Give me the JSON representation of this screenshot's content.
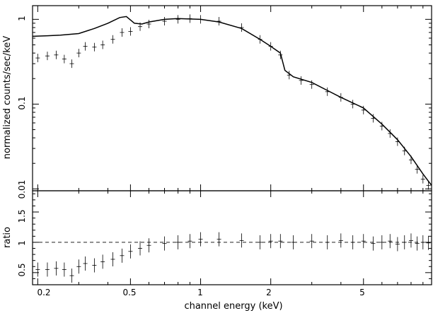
{
  "chart_data": [
    {
      "type": "scatter",
      "panel": "top",
      "xlabel": "",
      "ylabel": "normalized counts/sec/keV",
      "xscale": "log",
      "yscale": "log",
      "xlim": [
        0.19,
        9.8
      ],
      "ylim": [
        0.0095,
        1.45
      ],
      "y_ticks": [
        0.01,
        0.1,
        1
      ],
      "y_tick_labels": [
        "0.01",
        "0.1",
        "1"
      ],
      "series": [
        {
          "type": "data_with_error_bars",
          "x": [
            0.2,
            0.22,
            0.24,
            0.26,
            0.28,
            0.3,
            0.32,
            0.35,
            0.38,
            0.42,
            0.46,
            0.5,
            0.55,
            0.6,
            0.7,
            0.8,
            0.9,
            1.0,
            1.2,
            1.5,
            1.8,
            2.0,
            2.2,
            2.4,
            2.7,
            3.0,
            3.5,
            4.0,
            4.5,
            5.0,
            5.5,
            6.0,
            6.5,
            7.0,
            7.5,
            8.0,
            8.5,
            9.0,
            9.5
          ],
          "y": [
            0.35,
            0.37,
            0.38,
            0.34,
            0.3,
            0.4,
            0.48,
            0.47,
            0.5,
            0.58,
            0.7,
            0.72,
            0.82,
            0.88,
            0.95,
            1.0,
            1.02,
            1.0,
            0.95,
            0.8,
            0.58,
            0.48,
            0.38,
            0.22,
            0.19,
            0.17,
            0.14,
            0.12,
            0.1,
            0.085,
            0.068,
            0.055,
            0.045,
            0.036,
            0.028,
            0.022,
            0.017,
            0.013,
            0.011
          ]
        },
        {
          "type": "model_line",
          "x": [
            0.19,
            0.22,
            0.25,
            0.3,
            0.35,
            0.4,
            0.45,
            0.48,
            0.52,
            0.56,
            0.6,
            0.7,
            0.8,
            1.0,
            1.2,
            1.5,
            1.8,
            2.0,
            2.2,
            2.3,
            2.5,
            3.0,
            3.5,
            4.0,
            5.0,
            6.0,
            7.0,
            8.0,
            9.0,
            9.8
          ],
          "y": [
            0.63,
            0.64,
            0.65,
            0.68,
            0.78,
            0.9,
            1.05,
            1.08,
            0.9,
            0.88,
            0.93,
            1.0,
            1.02,
            1.0,
            0.93,
            0.78,
            0.58,
            0.48,
            0.4,
            0.25,
            0.21,
            0.18,
            0.145,
            0.12,
            0.09,
            0.058,
            0.038,
            0.024,
            0.015,
            0.011
          ]
        }
      ]
    },
    {
      "type": "scatter",
      "panel": "bottom",
      "xlabel": "channel energy (keV)",
      "ylabel": "ratio",
      "xscale": "log",
      "yscale": "linear",
      "xlim": [
        0.19,
        9.8
      ],
      "ylim": [
        0.3,
        1.85
      ],
      "x_ticks": [
        0.2,
        0.5,
        1,
        2,
        5
      ],
      "x_tick_labels": [
        "0.2",
        "0.5",
        "1",
        "2",
        "5"
      ],
      "y_ticks": [
        0.5,
        1,
        1.5
      ],
      "y_tick_labels": [
        "0.5",
        "1",
        "1.5"
      ],
      "reference_line": 1.0,
      "series": [
        {
          "type": "data_with_error_bars",
          "x": [
            0.2,
            0.22,
            0.24,
            0.26,
            0.28,
            0.3,
            0.32,
            0.35,
            0.38,
            0.42,
            0.46,
            0.5,
            0.55,
            0.6,
            0.7,
            0.8,
            0.9,
            1.0,
            1.2,
            1.5,
            1.8,
            2.0,
            2.2,
            2.5,
            3.0,
            3.5,
            4.0,
            4.5,
            5.0,
            5.5,
            6.0,
            6.5,
            7.0,
            7.5,
            8.0,
            8.5,
            9.0,
            9.5
          ],
          "y": [
            0.55,
            0.55,
            0.57,
            0.55,
            0.45,
            0.6,
            0.65,
            0.62,
            0.68,
            0.72,
            0.78,
            0.85,
            0.9,
            0.95,
            0.98,
            1.0,
            1.02,
            1.05,
            1.05,
            1.03,
            1.0,
            1.02,
            1.02,
            1.0,
            1.02,
            1.0,
            1.03,
            1.0,
            1.02,
            0.98,
            1.0,
            1.02,
            0.97,
            1.0,
            1.03,
            0.98,
            1.0,
            0.99
          ]
        }
      ]
    }
  ]
}
